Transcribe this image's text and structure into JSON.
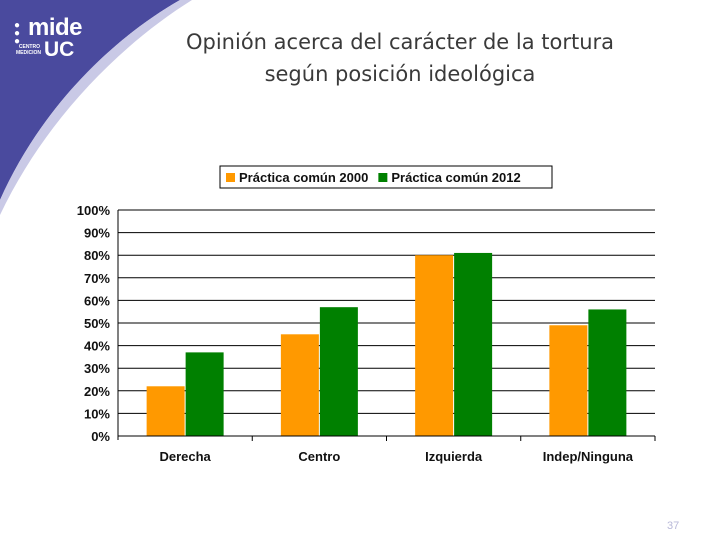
{
  "slide": {
    "title_line1": "Opinión acerca del carácter de la tortura",
    "title_line2": "según posición ideológica",
    "page_number": "37",
    "logo": {
      "word": "mide",
      "suffix": "UC",
      "small_text": "CENTRO MEDICION"
    }
  },
  "colors": {
    "sidebar": "#4a4a9e",
    "series_2000": "#ff9900",
    "series_2012": "#008000"
  },
  "chart_data": {
    "type": "bar",
    "categories": [
      "Derecha",
      "Centro",
      "Izquierda",
      "Indep/Ninguna"
    ],
    "series": [
      {
        "name": "Práctica común 2000",
        "values": [
          22,
          45,
          80,
          49
        ]
      },
      {
        "name": "Práctica común 2012",
        "values": [
          37,
          57,
          81,
          56
        ]
      }
    ],
    "ylim": [
      0,
      100
    ],
    "yticks": [
      "0%",
      "10%",
      "20%",
      "30%",
      "40%",
      "50%",
      "60%",
      "70%",
      "80%",
      "90%",
      "100%"
    ],
    "grid": true,
    "legend_position": "top"
  }
}
